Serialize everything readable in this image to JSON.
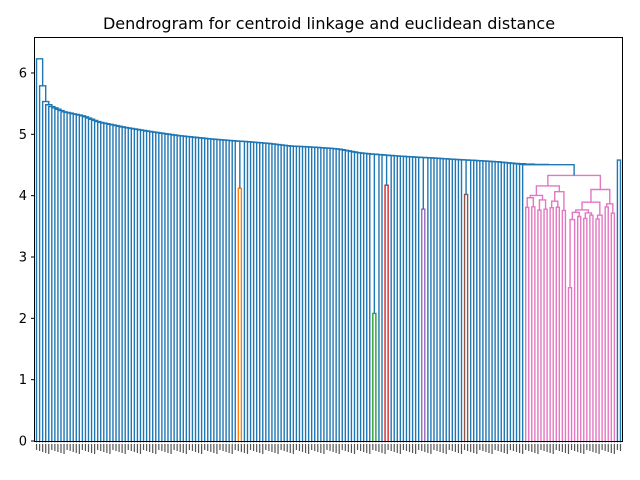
{
  "chart_data": {
    "type": "dendrogram",
    "title": "Dendrogram for centroid linkage and euclidean distance",
    "xlabel": "",
    "ylabel": "",
    "ylim": [
      0,
      6.57
    ],
    "yticks": [
      0,
      1,
      2,
      3,
      4,
      5,
      6
    ],
    "grid": false,
    "leaf_count": 192,
    "colors": {
      "main": "#1f77b4",
      "orange": "#ff7f0e",
      "green": "#2ca02c",
      "red": "#d62728",
      "purple": "#9467bd",
      "brown": "#8c564b",
      "pink": "#e377c2"
    },
    "chain_merge_heights_approx": [
      6.23,
      6.06,
      5.57,
      5.47,
      5.37,
      5.3,
      5.2,
      5.12,
      5.05,
      4.98,
      4.93,
      4.89,
      4.85,
      4.81,
      4.79,
      4.76,
      4.7,
      4.65,
      4.63,
      4.61,
      4.58,
      4.55,
      4.5,
      4.46
    ],
    "colored_clusters": [
      {
        "color": "orange",
        "height": 4.12,
        "leaves": 2
      },
      {
        "color": "green",
        "height": 2.08,
        "leaves": 2
      },
      {
        "color": "red",
        "height": 4.17,
        "leaves": 2
      },
      {
        "color": "purple",
        "height": 3.78,
        "leaves": 2
      },
      {
        "color": "brown",
        "height": 4.02,
        "leaves": 2
      },
      {
        "color": "pink",
        "height": 4.33,
        "leaves": 32
      }
    ],
    "top_merge_height": 4.55,
    "right_cluster_height": 4.58
  }
}
